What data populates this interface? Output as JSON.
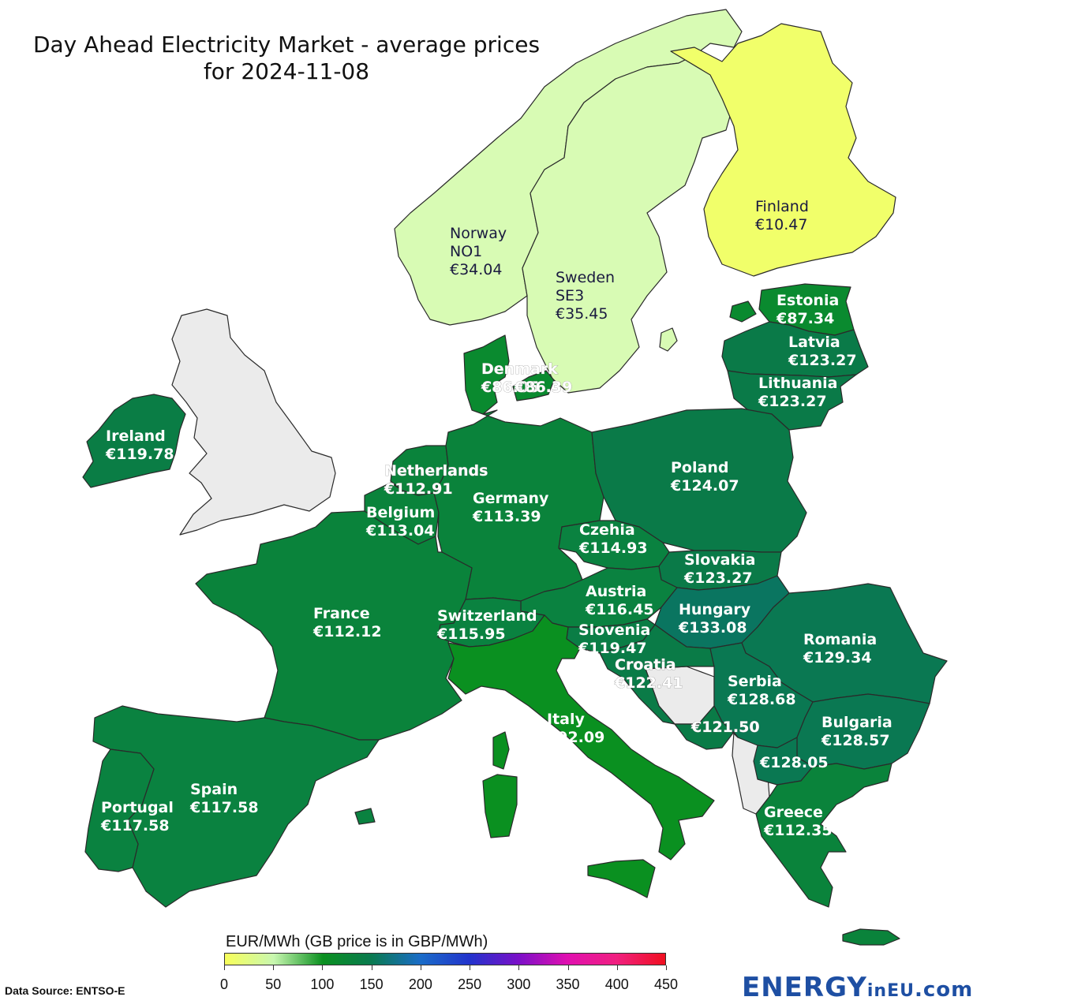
{
  "title": {
    "line1": "Day Ahead Electricity Market - average prices",
    "line2": "for 2024-11-08"
  },
  "colors": {
    "sea": "#ffffff",
    "no_data": "#ebebeb",
    "border": "#2a2a2a"
  },
  "regions": [
    {
      "id": "norway",
      "name": "Norway",
      "sub": "NO1",
      "price": "€34.04",
      "color": "#d8fbb4"
    },
    {
      "id": "sweden",
      "name": "Sweden",
      "sub": "SE3",
      "price": "€35.45",
      "color": "#d8fbb4"
    },
    {
      "id": "finland",
      "name": "Finland",
      "sub": "",
      "price": "€10.47",
      "color": "#f1ff6a"
    },
    {
      "id": "estonia",
      "name": "Estonia",
      "sub": "",
      "price": "€87.34",
      "color": "#0a8a2f"
    },
    {
      "id": "latvia",
      "name": "Latvia",
      "sub": "",
      "price": "€123.27",
      "color": "#0a7a48"
    },
    {
      "id": "lithuania",
      "name": "Lithuania",
      "sub": "",
      "price": "€123.27",
      "color": "#0a7a48"
    },
    {
      "id": "denmark",
      "name": "Denmark",
      "sub": "",
      "price": "€86.05",
      "price2": "€86.39",
      "color": "#0a8a2f"
    },
    {
      "id": "ireland",
      "name": "Ireland",
      "sub": "",
      "price": "€119.78",
      "color": "#0a7d45"
    },
    {
      "id": "netherlands",
      "name": "Netherlands",
      "sub": "",
      "price": "€112.91",
      "color": "#0a833b"
    },
    {
      "id": "belgium",
      "name": "Belgium",
      "sub": "",
      "price": "€113.04",
      "color": "#0a833b"
    },
    {
      "id": "germany",
      "name": "Germany",
      "sub": "",
      "price": "€113.39",
      "color": "#0a833b"
    },
    {
      "id": "poland",
      "name": "Poland",
      "sub": "",
      "price": "€124.07",
      "color": "#0a7a48"
    },
    {
      "id": "czechia",
      "name": "Czehia",
      "sub": "",
      "price": "€114.93",
      "color": "#0a8240"
    },
    {
      "id": "slovakia",
      "name": "Slovakia",
      "sub": "",
      "price": "€123.27",
      "color": "#0a7a48"
    },
    {
      "id": "austria",
      "name": "Austria",
      "sub": "",
      "price": "€116.45",
      "color": "#0a8240"
    },
    {
      "id": "hungary",
      "name": "Hungary",
      "sub": "",
      "price": "€133.08",
      "color": "#0a7560"
    },
    {
      "id": "romania",
      "name": "Romania",
      "sub": "",
      "price": "€129.34",
      "color": "#0a7852"
    },
    {
      "id": "france",
      "name": "France",
      "sub": "",
      "price": "€112.12",
      "color": "#0a833b"
    },
    {
      "id": "switzerland",
      "name": "Switzerland",
      "sub": "",
      "price": "€115.95",
      "color": "#0a8240"
    },
    {
      "id": "slovenia",
      "name": "Slovenia",
      "sub": "",
      "price": "€119.47",
      "color": "#0a7d45"
    },
    {
      "id": "croatia",
      "name": "Croatia",
      "sub": "",
      "price": "€122.41",
      "color": "#0a7b47"
    },
    {
      "id": "serbia",
      "name": "Serbia",
      "sub": "",
      "price": "€128.68",
      "color": "#0a7852"
    },
    {
      "id": "montenegro",
      "name": "",
      "sub": "",
      "price": "€121.50",
      "color": "#0a7b47"
    },
    {
      "id": "bulgaria",
      "name": "Bulgaria",
      "sub": "",
      "price": "€128.57",
      "color": "#0a7852"
    },
    {
      "id": "north-macedonia",
      "name": "",
      "sub": "",
      "price": "€128.05",
      "color": "#0a7852"
    },
    {
      "id": "greece",
      "name": "Greece",
      "sub": "",
      "price": "€112.35",
      "color": "#0a833b"
    },
    {
      "id": "italy",
      "name": "Italy",
      "sub": "",
      "price": "€92.09",
      "color": "#0a9020"
    },
    {
      "id": "spain",
      "name": "Spain",
      "sub": "",
      "price": "€117.58",
      "color": "#0a8240"
    },
    {
      "id": "portugal",
      "name": "Portugal",
      "sub": "",
      "price": "€117.58",
      "color": "#0a8240"
    }
  ],
  "legend": {
    "title": "EUR/MWh (GB price is in GBP/MWh)",
    "ticks": [
      "0",
      "50",
      "100",
      "150",
      "200",
      "250",
      "300",
      "350",
      "400",
      "450"
    ],
    "min": 0,
    "max": 450,
    "gradient": [
      "#f7ff5a",
      "#c8f7b0",
      "#0a9020",
      "#0a7a50",
      "#1a6cc8",
      "#2233cc",
      "#7a10c8",
      "#e010b0",
      "#f02080",
      "#f01020"
    ]
  },
  "source": "Data Source: ENTSO-E",
  "logo": {
    "part1": "ENERGY",
    "part2": "inEU",
    "part3": ".com"
  }
}
